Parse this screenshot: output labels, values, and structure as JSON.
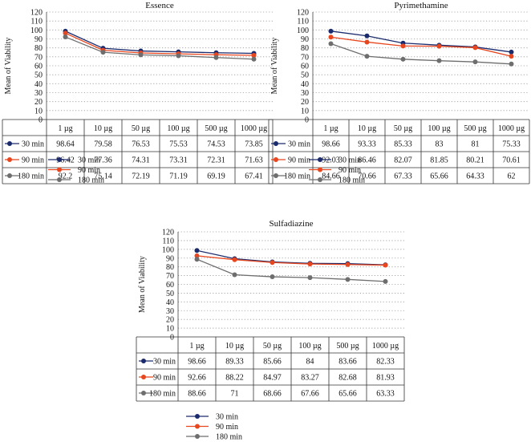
{
  "series_colors": {
    "30 min": "#1a2a6c",
    "90 min": "#e8461e",
    "180 min": "#6e6e6e"
  },
  "chart_data": [
    {
      "type": "line",
      "title": "Essence",
      "ylabel": "Mean of Viability",
      "ylim": [
        0,
        120
      ],
      "yticks": [
        0,
        10,
        20,
        30,
        40,
        50,
        60,
        70,
        80,
        90,
        100,
        110,
        120
      ],
      "categories": [
        "1 µg",
        "10 µg",
        "50 µg",
        "100 µg",
        "500 µg",
        "1000 µg"
      ],
      "series": [
        {
          "name": "30 min",
          "values": [
            98.64,
            79.58,
            76.53,
            75.53,
            74.53,
            73.85
          ],
          "labels": [
            "98.64",
            "79.58",
            "76.53",
            "75.53",
            "74.53",
            "73.85"
          ]
        },
        {
          "name": "90 min",
          "values": [
            96.42,
            77.36,
            74.31,
            73.31,
            72.31,
            71.63
          ],
          "labels": [
            "96.42",
            "77.36",
            "74.31",
            "73.31",
            "72.31",
            "71.63"
          ]
        },
        {
          "name": "180 min",
          "values": [
            92.2,
            75.14,
            72.19,
            71.19,
            69.19,
            67.41
          ],
          "labels": [
            "92.2",
            "75.14",
            "72.19",
            "71.19",
            "69.19",
            "67.41"
          ]
        }
      ]
    },
    {
      "type": "line",
      "title": "Pyrimethamine",
      "ylabel": "Mean of Viability",
      "ylim": [
        0,
        120
      ],
      "yticks": [
        0,
        10,
        20,
        30,
        40,
        50,
        60,
        70,
        80,
        90,
        100,
        110,
        120
      ],
      "categories": [
        "1 µg",
        "10 µg",
        "50 µg",
        "100 µg",
        "500 µg",
        "1000 µg"
      ],
      "series": [
        {
          "name": "30 min",
          "values": [
            98.66,
            93.33,
            85.33,
            83,
            81,
            75.33
          ],
          "labels": [
            "98.66",
            "93.33",
            "85.33",
            "83",
            "81",
            "75.33"
          ]
        },
        {
          "name": "90 min",
          "values": [
            92.03,
            86.46,
            82.07,
            81.85,
            80.21,
            70.61
          ],
          "labels": [
            "92.03",
            "86.46",
            "82.07",
            "81.85",
            "80.21",
            "70.61"
          ]
        },
        {
          "name": "180 min",
          "values": [
            84.66,
            70.66,
            67.33,
            65.66,
            64.33,
            62
          ],
          "labels": [
            "84.66",
            "70.66",
            "67.33",
            "65.66",
            "64.33",
            "62"
          ]
        }
      ]
    },
    {
      "type": "line",
      "title": "Sulfadiazine",
      "ylabel": "Mean of Viability",
      "ylim": [
        0,
        120
      ],
      "yticks": [
        0,
        10,
        20,
        30,
        40,
        50,
        60,
        70,
        80,
        90,
        100,
        110,
        120
      ],
      "categories": [
        "1 µg",
        "10 µg",
        "50 µg",
        "100 µg",
        "500 µg",
        "1000 µg"
      ],
      "series": [
        {
          "name": "30 min",
          "values": [
            98.66,
            89.33,
            85.66,
            84,
            83.66,
            82.33
          ],
          "labels": [
            "98.66",
            "89.33",
            "85.66",
            "84",
            "83.66",
            "82.33"
          ]
        },
        {
          "name": "90 min",
          "values": [
            92.66,
            88.22,
            84.97,
            83.27,
            82.68,
            81.93
          ],
          "labels": [
            "92.66",
            "88.22",
            "84.97",
            "83.27",
            "82.68",
            "81.93"
          ]
        },
        {
          "name": "180 min",
          "values": [
            88.66,
            71,
            68.66,
            67.66,
            65.66,
            63.33
          ],
          "labels": [
            "88.66",
            "71",
            "68.66",
            "67.66",
            "65.66",
            "63.33"
          ]
        }
      ]
    }
  ]
}
